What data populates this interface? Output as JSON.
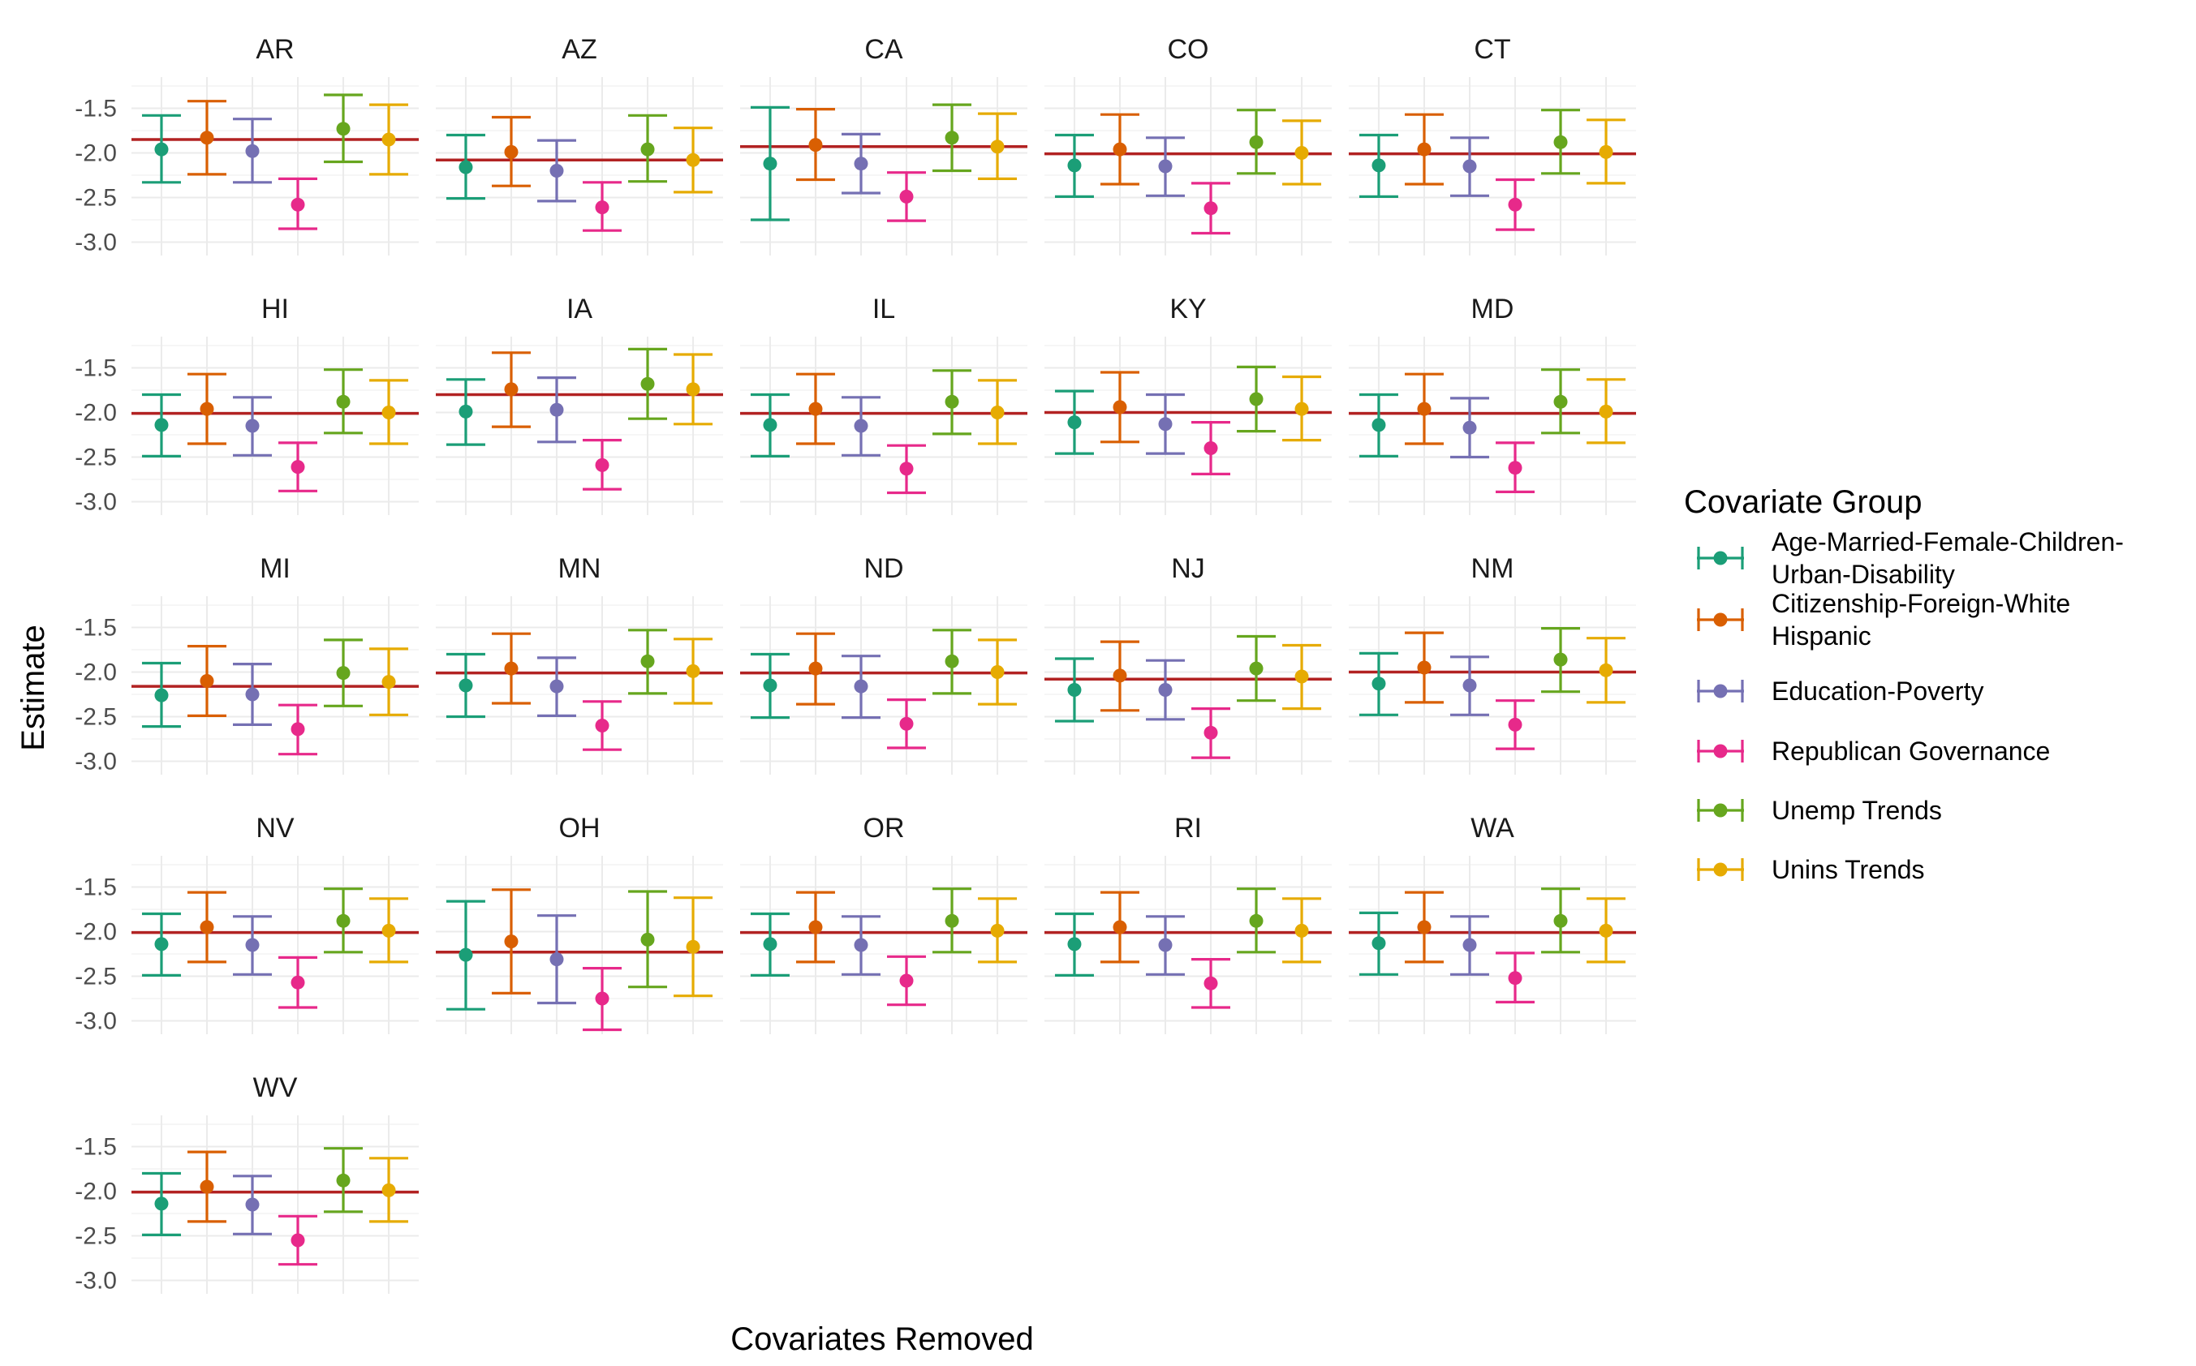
{
  "chart_data": {
    "type": "errorbar",
    "xlabel": "Covariates Removed",
    "ylabel": "Estimate",
    "ylim": [
      -3.15,
      -1.15
    ],
    "yticks": [
      -1.5,
      -2.0,
      -2.5,
      -3.0
    ],
    "ytick_labels": [
      "-1.5",
      "-2.0",
      "-2.5",
      "-3.0"
    ],
    "legend": {
      "title": "Covariate Group",
      "position": "right",
      "items": [
        {
          "label_lines": [
            "Age-Married-Female-Children-",
            "Urban-Disability"
          ],
          "color": "#1B9E77"
        },
        {
          "label_lines": [
            "Citizenship-Foreign-White",
            "Hispanic"
          ],
          "color": "#D95F02"
        },
        {
          "label_lines": [
            "Education-Poverty"
          ],
          "color": "#7570B3"
        },
        {
          "label_lines": [
            "Republican Governance"
          ],
          "color": "#E7298A"
        },
        {
          "label_lines": [
            "Unemp Trends"
          ],
          "color": "#66A61E"
        },
        {
          "label_lines": [
            "Unins Trends"
          ],
          "color": "#E6AB02"
        }
      ]
    },
    "reference_line_color": "#B22222",
    "facets": [
      {
        "title": "AR",
        "ref": -1.85,
        "est": [
          -1.96,
          -1.83,
          -1.98,
          -2.58,
          -1.73,
          -1.85
        ],
        "lo": [
          -2.33,
          -2.24,
          -2.33,
          -2.85,
          -2.1,
          -2.24
        ],
        "hi": [
          -1.58,
          -1.42,
          -1.62,
          -2.29,
          -1.35,
          -1.46
        ]
      },
      {
        "title": "AZ",
        "ref": -2.08,
        "est": [
          -2.16,
          -1.99,
          -2.2,
          -2.61,
          -1.96,
          -2.08
        ],
        "lo": [
          -2.51,
          -2.37,
          -2.54,
          -2.87,
          -2.32,
          -2.44
        ],
        "hi": [
          -1.8,
          -1.6,
          -1.86,
          -2.33,
          -1.58,
          -1.72
        ]
      },
      {
        "title": "CA",
        "ref": -1.93,
        "est": [
          -2.12,
          -1.91,
          -2.12,
          -2.49,
          -1.83,
          -1.93
        ],
        "lo": [
          -2.75,
          -2.3,
          -2.45,
          -2.76,
          -2.2,
          -2.29
        ],
        "hi": [
          -1.49,
          -1.51,
          -1.79,
          -2.22,
          -1.46,
          -1.56
        ]
      },
      {
        "title": "CO",
        "ref": -2.01,
        "est": [
          -2.14,
          -1.96,
          -2.15,
          -2.62,
          -1.88,
          -2.0
        ],
        "lo": [
          -2.49,
          -2.35,
          -2.48,
          -2.9,
          -2.23,
          -2.35
        ],
        "hi": [
          -1.8,
          -1.57,
          -1.83,
          -2.34,
          -1.52,
          -1.64
        ]
      },
      {
        "title": "CT",
        "ref": -2.01,
        "est": [
          -2.14,
          -1.96,
          -2.15,
          -2.58,
          -1.88,
          -1.99
        ],
        "lo": [
          -2.49,
          -2.35,
          -2.48,
          -2.86,
          -2.23,
          -2.34
        ],
        "hi": [
          -1.8,
          -1.57,
          -1.83,
          -2.3,
          -1.52,
          -1.63
        ]
      },
      {
        "title": "HI",
        "ref": -2.01,
        "est": [
          -2.14,
          -1.96,
          -2.15,
          -2.61,
          -1.88,
          -2.0
        ],
        "lo": [
          -2.49,
          -2.35,
          -2.48,
          -2.88,
          -2.23,
          -2.35
        ],
        "hi": [
          -1.8,
          -1.57,
          -1.83,
          -2.34,
          -1.52,
          -1.64
        ]
      },
      {
        "title": "IA",
        "ref": -1.8,
        "est": [
          -1.99,
          -1.74,
          -1.97,
          -2.59,
          -1.68,
          -1.74
        ],
        "lo": [
          -2.36,
          -2.16,
          -2.33,
          -2.86,
          -2.07,
          -2.13
        ],
        "hi": [
          -1.63,
          -1.33,
          -1.61,
          -2.31,
          -1.29,
          -1.35
        ]
      },
      {
        "title": "IL",
        "ref": -2.01,
        "est": [
          -2.14,
          -1.96,
          -2.15,
          -2.63,
          -1.88,
          -2.0
        ],
        "lo": [
          -2.49,
          -2.35,
          -2.48,
          -2.9,
          -2.24,
          -2.35
        ],
        "hi": [
          -1.8,
          -1.57,
          -1.83,
          -2.37,
          -1.53,
          -1.64
        ]
      },
      {
        "title": "KY",
        "ref": -2.0,
        "est": [
          -2.11,
          -1.94,
          -2.13,
          -2.4,
          -1.85,
          -1.96
        ],
        "lo": [
          -2.46,
          -2.33,
          -2.46,
          -2.69,
          -2.21,
          -2.31
        ],
        "hi": [
          -1.76,
          -1.55,
          -1.8,
          -2.11,
          -1.49,
          -1.6
        ]
      },
      {
        "title": "MD",
        "ref": -2.01,
        "est": [
          -2.14,
          -1.96,
          -2.17,
          -2.62,
          -1.88,
          -1.99
        ],
        "lo": [
          -2.49,
          -2.35,
          -2.5,
          -2.89,
          -2.23,
          -2.34
        ],
        "hi": [
          -1.8,
          -1.57,
          -1.84,
          -2.34,
          -1.52,
          -1.63
        ]
      },
      {
        "title": "MI",
        "ref": -2.16,
        "est": [
          -2.26,
          -2.1,
          -2.25,
          -2.64,
          -2.01,
          -2.11
        ],
        "lo": [
          -2.61,
          -2.49,
          -2.59,
          -2.92,
          -2.38,
          -2.48
        ],
        "hi": [
          -1.9,
          -1.71,
          -1.91,
          -2.37,
          -1.64,
          -1.74
        ]
      },
      {
        "title": "MN",
        "ref": -2.01,
        "est": [
          -2.15,
          -1.96,
          -2.16,
          -2.6,
          -1.88,
          -1.99
        ],
        "lo": [
          -2.5,
          -2.35,
          -2.49,
          -2.87,
          -2.24,
          -2.35
        ],
        "hi": [
          -1.8,
          -1.57,
          -1.84,
          -2.33,
          -1.53,
          -1.63
        ]
      },
      {
        "title": "ND",
        "ref": -2.01,
        "est": [
          -2.15,
          -1.96,
          -2.16,
          -2.58,
          -1.88,
          -2.0
        ],
        "lo": [
          -2.51,
          -2.36,
          -2.51,
          -2.85,
          -2.24,
          -2.36
        ],
        "hi": [
          -1.8,
          -1.57,
          -1.82,
          -2.31,
          -1.53,
          -1.64
        ]
      },
      {
        "title": "NJ",
        "ref": -2.08,
        "est": [
          -2.2,
          -2.04,
          -2.2,
          -2.68,
          -1.96,
          -2.05
        ],
        "lo": [
          -2.55,
          -2.43,
          -2.53,
          -2.96,
          -2.32,
          -2.41
        ],
        "hi": [
          -1.85,
          -1.66,
          -1.87,
          -2.41,
          -1.6,
          -1.7
        ]
      },
      {
        "title": "NM",
        "ref": -2.0,
        "est": [
          -2.13,
          -1.95,
          -2.15,
          -2.59,
          -1.86,
          -1.98
        ],
        "lo": [
          -2.48,
          -2.34,
          -2.48,
          -2.86,
          -2.22,
          -2.34
        ],
        "hi": [
          -1.79,
          -1.56,
          -1.83,
          -2.32,
          -1.51,
          -1.62
        ]
      },
      {
        "title": "NV",
        "ref": -2.01,
        "est": [
          -2.14,
          -1.95,
          -2.15,
          -2.57,
          -1.88,
          -1.99
        ],
        "lo": [
          -2.49,
          -2.34,
          -2.48,
          -2.85,
          -2.23,
          -2.34
        ],
        "hi": [
          -1.8,
          -1.56,
          -1.83,
          -2.29,
          -1.52,
          -1.63
        ]
      },
      {
        "title": "OH",
        "ref": -2.23,
        "est": [
          -2.26,
          -2.11,
          -2.31,
          -2.75,
          -2.09,
          -2.17
        ],
        "lo": [
          -2.87,
          -2.69,
          -2.8,
          -3.1,
          -2.62,
          -2.72
        ],
        "hi": [
          -1.66,
          -1.53,
          -1.82,
          -2.41,
          -1.55,
          -1.62
        ]
      },
      {
        "title": "OR",
        "ref": -2.01,
        "est": [
          -2.14,
          -1.95,
          -2.15,
          -2.55,
          -1.88,
          -1.99
        ],
        "lo": [
          -2.49,
          -2.34,
          -2.48,
          -2.82,
          -2.23,
          -2.34
        ],
        "hi": [
          -1.8,
          -1.56,
          -1.83,
          -2.28,
          -1.52,
          -1.63
        ]
      },
      {
        "title": "RI",
        "ref": -2.01,
        "est": [
          -2.14,
          -1.95,
          -2.15,
          -2.58,
          -1.88,
          -1.99
        ],
        "lo": [
          -2.49,
          -2.34,
          -2.48,
          -2.85,
          -2.23,
          -2.34
        ],
        "hi": [
          -1.8,
          -1.56,
          -1.83,
          -2.31,
          -1.52,
          -1.63
        ]
      },
      {
        "title": "WA",
        "ref": -2.01,
        "est": [
          -2.13,
          -1.95,
          -2.15,
          -2.52,
          -1.88,
          -1.99
        ],
        "lo": [
          -2.48,
          -2.34,
          -2.48,
          -2.79,
          -2.23,
          -2.34
        ],
        "hi": [
          -1.79,
          -1.56,
          -1.83,
          -2.24,
          -1.52,
          -1.63
        ]
      },
      {
        "title": "WV",
        "ref": -2.01,
        "est": [
          -2.14,
          -1.95,
          -2.15,
          -2.55,
          -1.88,
          -1.99
        ],
        "lo": [
          -2.49,
          -2.34,
          -2.48,
          -2.82,
          -2.23,
          -2.34
        ],
        "hi": [
          -1.8,
          -1.56,
          -1.83,
          -2.28,
          -1.52,
          -1.63
        ]
      }
    ]
  }
}
